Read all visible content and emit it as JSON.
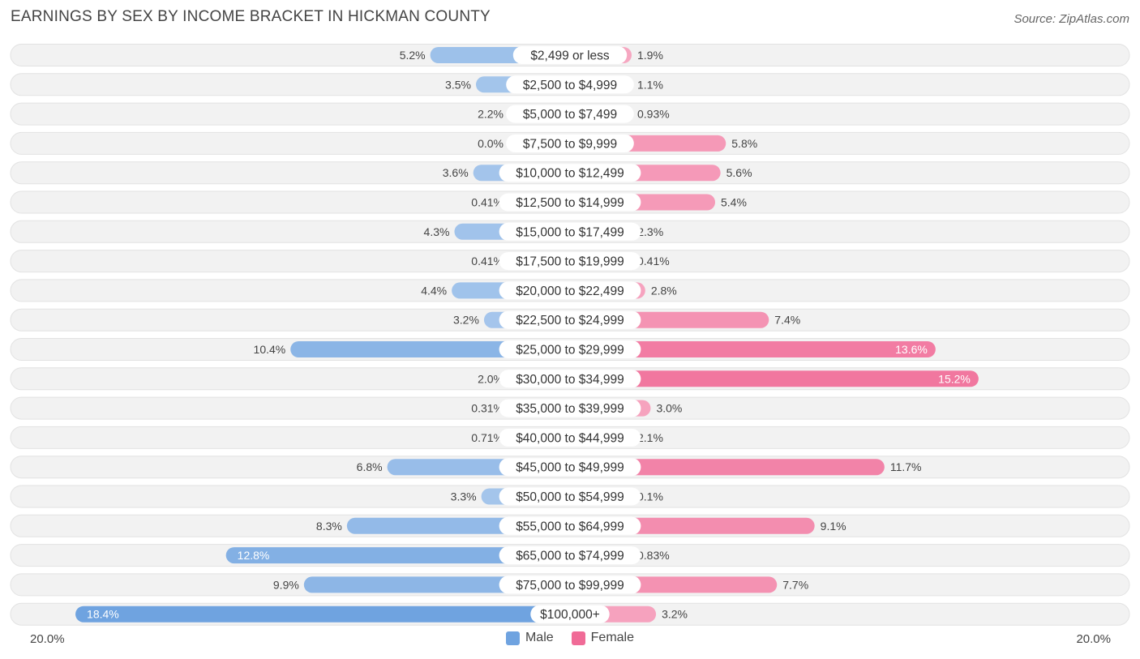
{
  "header": {
    "title": "EARNINGS BY SEX BY INCOME BRACKET IN HICKMAN COUNTY",
    "source": "Source: ZipAtlas.com"
  },
  "colors": {
    "male": "#6fa3e0",
    "female": "#f06b97",
    "row_bg": "#f1f1f1"
  },
  "chart_data": {
    "type": "bar",
    "orientation": "horizontal-diverging",
    "title": "EARNINGS BY SEX BY INCOME BRACKET IN HICKMAN COUNTY",
    "categories": [
      "$2,499 or less",
      "$2,500 to $4,999",
      "$5,000 to $7,499",
      "$7,500 to $9,999",
      "$10,000 to $12,499",
      "$12,500 to $14,999",
      "$15,000 to $17,499",
      "$17,500 to $19,999",
      "$20,000 to $22,499",
      "$22,500 to $24,999",
      "$25,000 to $29,999",
      "$30,000 to $34,999",
      "$35,000 to $39,999",
      "$40,000 to $44,999",
      "$45,000 to $49,999",
      "$50,000 to $54,999",
      "$55,000 to $64,999",
      "$65,000 to $74,999",
      "$75,000 to $99,999",
      "$100,000+"
    ],
    "series": [
      {
        "name": "Male",
        "values": [
          5.2,
          3.5,
          2.2,
          0.0,
          3.6,
          0.41,
          4.3,
          0.41,
          4.4,
          3.2,
          10.4,
          2.0,
          0.31,
          0.71,
          6.8,
          3.3,
          8.3,
          12.8,
          9.9,
          18.4
        ],
        "labels": [
          "5.2%",
          "3.5%",
          "2.2%",
          "0.0%",
          "3.6%",
          "0.41%",
          "4.3%",
          "0.41%",
          "4.4%",
          "3.2%",
          "10.4%",
          "2.0%",
          "0.31%",
          "0.71%",
          "6.8%",
          "3.3%",
          "8.3%",
          "12.8%",
          "9.9%",
          "18.4%"
        ]
      },
      {
        "name": "Female",
        "values": [
          1.9,
          1.1,
          0.93,
          5.8,
          5.6,
          5.4,
          2.3,
          0.41,
          2.8,
          7.4,
          13.6,
          15.2,
          3.0,
          2.1,
          11.7,
          0.1,
          9.1,
          0.83,
          7.7,
          3.2
        ],
        "labels": [
          "1.9%",
          "1.1%",
          "0.93%",
          "5.8%",
          "5.6%",
          "5.4%",
          "2.3%",
          "0.41%",
          "2.8%",
          "7.4%",
          "13.6%",
          "15.2%",
          "3.0%",
          "2.1%",
          "11.7%",
          "0.1%",
          "9.1%",
          "0.83%",
          "7.7%",
          "3.2%"
        ]
      }
    ],
    "xlim": [
      -20,
      20
    ],
    "axis_left_label": "20.0%",
    "axis_right_label": "20.0%",
    "legend": [
      "Male",
      "Female"
    ],
    "legend_position": "bottom-center"
  }
}
